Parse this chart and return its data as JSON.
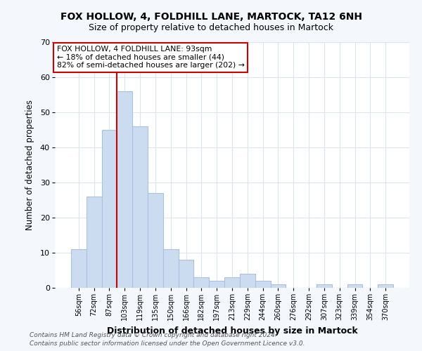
{
  "title": "FOX HOLLOW, 4, FOLDHILL LANE, MARTOCK, TA12 6NH",
  "subtitle": "Size of property relative to detached houses in Martock",
  "xlabel": "Distribution of detached houses by size in Martock",
  "ylabel": "Number of detached properties",
  "bin_labels": [
    "56sqm",
    "72sqm",
    "87sqm",
    "103sqm",
    "119sqm",
    "135sqm",
    "150sqm",
    "166sqm",
    "182sqm",
    "197sqm",
    "213sqm",
    "229sqm",
    "244sqm",
    "260sqm",
    "276sqm",
    "292sqm",
    "307sqm",
    "323sqm",
    "339sqm",
    "354sqm",
    "370sqm"
  ],
  "bar_values": [
    11,
    26,
    45,
    56,
    46,
    27,
    11,
    8,
    3,
    2,
    3,
    4,
    2,
    1,
    0,
    0,
    1,
    0,
    1,
    0,
    1
  ],
  "bar_color": "#ccdcf0",
  "bar_edgecolor": "#aac0de",
  "vline_x_index": 2,
  "vline_color": "#cc0000",
  "ylim": [
    0,
    70
  ],
  "yticks": [
    0,
    10,
    20,
    30,
    40,
    50,
    60,
    70
  ],
  "annotation_box_text": "FOX HOLLOW, 4 FOLDHILL LANE: 93sqm\n← 18% of detached houses are smaller (44)\n82% of semi-detached houses are larger (202) →",
  "footer_line1": "Contains HM Land Registry data © Crown copyright and database right 2024.",
  "footer_line2": "Contains public sector information licensed under the Open Government Licence v3.0.",
  "fig_bg_color": "#f4f7fc",
  "plot_bg_color": "#ffffff",
  "grid_color": "#dce4f0"
}
